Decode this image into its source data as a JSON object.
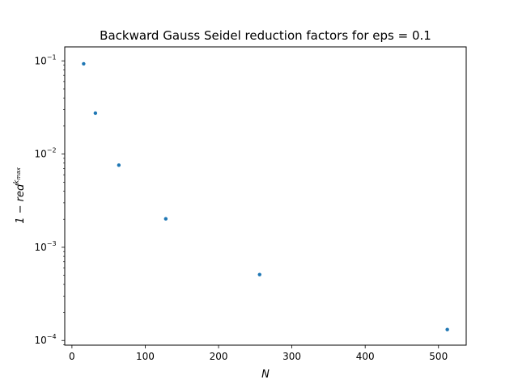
{
  "chart_data": {
    "type": "scatter",
    "title": "Backward Gauss Seidel reduction factors for eps = 0.1",
    "xlabel": "N",
    "ylabel": {
      "base": "1 − red",
      "superscript": "k",
      "subscript": "max"
    },
    "xscale": "linear",
    "yscale": "log",
    "xlim": [
      -9.8,
      537.8
    ],
    "ylim_log10": [
      -4.05,
      -0.85
    ],
    "xticks": [
      0,
      100,
      200,
      300,
      400,
      500
    ],
    "yticks": [
      {
        "base": "10",
        "exp": "−1",
        "value": 0.1
      },
      {
        "base": "10",
        "exp": "−2",
        "value": 0.01
      },
      {
        "base": "10",
        "exp": "−3",
        "value": 0.001
      },
      {
        "base": "10",
        "exp": "−4",
        "value": 0.0001
      }
    ],
    "grid": false,
    "color": "#1f77b4",
    "x": [
      16,
      32,
      64,
      128,
      256,
      512
    ],
    "y": [
      0.093,
      0.0275,
      0.0076,
      0.00202,
      0.00051,
      0.000131
    ]
  }
}
